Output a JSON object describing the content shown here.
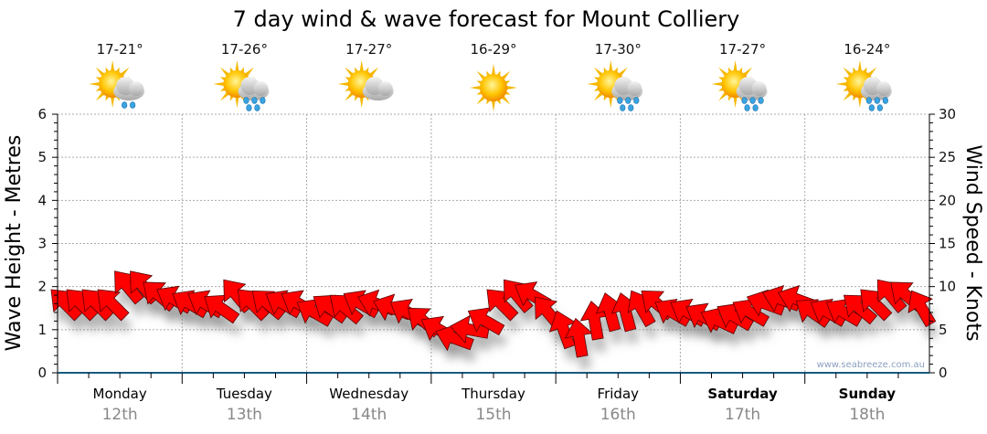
{
  "chart_data": {
    "type": "scatter",
    "title": "7 day wind & wave forecast for Mount Colliery",
    "ylabel_left": "Wave Height - Metres",
    "ylabel_right": "Wind Speed - Knots",
    "ylim_left": [
      0,
      6
    ],
    "ylim_right": [
      0,
      30
    ],
    "yticks_left": [
      "0",
      "1",
      "2",
      "3",
      "4",
      "5",
      "6"
    ],
    "yticks_right": [
      "0",
      "5",
      "10",
      "15",
      "20",
      "25",
      "30"
    ],
    "grid": true,
    "days": [
      {
        "name": "Monday",
        "date": "12th",
        "temp": "17-21°",
        "icon": "sun-cloud-light-rain-icon",
        "bold": false
      },
      {
        "name": "Tuesday",
        "date": "13th",
        "temp": "17-26°",
        "icon": "sun-cloud-showers-icon",
        "bold": false
      },
      {
        "name": "Wednesday",
        "date": "14th",
        "temp": "17-27°",
        "icon": "sun-cloud-icon",
        "bold": false
      },
      {
        "name": "Thursday",
        "date": "15th",
        "temp": "16-29°",
        "icon": "sun-icon",
        "bold": false
      },
      {
        "name": "Friday",
        "date": "16th",
        "temp": "17-30°",
        "icon": "sun-cloud-showers-icon",
        "bold": false
      },
      {
        "name": "Saturday",
        "date": "17th",
        "temp": "17-27°",
        "icon": "sun-cloud-showers-icon",
        "bold": true
      },
      {
        "name": "Sunday",
        "date": "18th",
        "temp": "16-24°",
        "icon": "sun-cloud-showers-icon",
        "bold": true
      }
    ],
    "wind_series": {
      "name": "Wind",
      "unit": "knots",
      "speed": [
        8,
        8,
        8,
        8,
        10,
        10,
        9,
        8.5,
        8,
        8,
        7.5,
        9,
        8,
        8,
        8,
        8,
        7,
        7.5,
        7.5,
        8,
        8,
        7.5,
        7,
        6,
        5,
        4,
        5,
        6,
        8,
        9,
        9,
        7,
        5,
        4,
        6,
        7,
        7,
        7.5,
        8,
        7,
        7,
        6.5,
        6,
        6.5,
        7,
        8,
        8.5,
        8.5,
        7,
        7,
        7,
        7.5,
        8,
        9,
        9,
        7.5
      ],
      "direction_deg": [
        315,
        315,
        315,
        315,
        320,
        320,
        310,
        300,
        300,
        300,
        305,
        320,
        315,
        310,
        300,
        300,
        300,
        305,
        310,
        300,
        290,
        290,
        300,
        310,
        300,
        290,
        280,
        300,
        315,
        320,
        300,
        320,
        340,
        350,
        350,
        345,
        345,
        330,
        310,
        300,
        300,
        300,
        295,
        300,
        300,
        290,
        290,
        290,
        305,
        300,
        300,
        310,
        315,
        320,
        310,
        330
      ],
      "color": "#ff0000"
    },
    "watermark": "www.seabreeze.com.au"
  }
}
